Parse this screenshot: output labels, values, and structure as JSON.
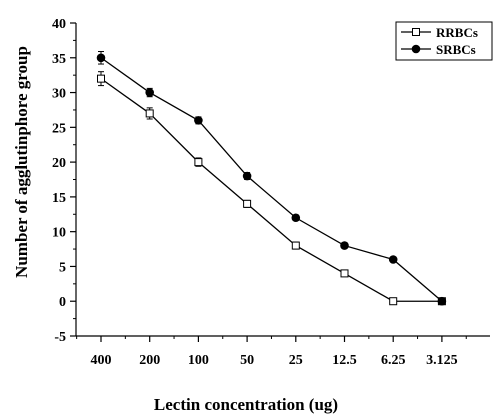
{
  "chart_data": {
    "type": "line",
    "xlabel": "Lectin concentration (ug)",
    "ylabel": "Number of agglutinphore group",
    "categories": [
      "400",
      "200",
      "100",
      "50",
      "25",
      "12.5",
      "6.25",
      "3.125"
    ],
    "y_ticks": [
      "-5",
      "0",
      "5",
      "10",
      "15",
      "20",
      "25",
      "30",
      "35",
      "40"
    ],
    "ylim": [
      -5,
      40
    ],
    "grid": false,
    "legend_position": "top-right",
    "series": [
      {
        "name": "RRBCs",
        "marker": "open-square",
        "values": [
          32,
          27,
          20,
          14,
          8,
          4,
          0,
          0
        ],
        "errors": [
          1,
          0.8,
          0.6,
          0.5,
          0.5,
          0.4,
          0,
          0
        ]
      },
      {
        "name": "SRBCs",
        "marker": "filled-circle",
        "values": [
          35,
          30,
          26,
          18,
          12,
          8,
          6,
          0
        ],
        "errors": [
          0.9,
          0.6,
          0.5,
          0.5,
          0.4,
          0.4,
          0.3,
          0
        ]
      }
    ],
    "colors": {
      "line": "#000000",
      "marker_fill": "#000000",
      "open_marker_fill": "#ffffff"
    }
  }
}
